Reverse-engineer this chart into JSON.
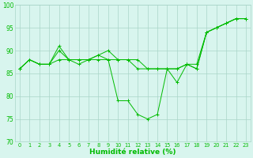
{
  "title": "",
  "xlabel": "Humidité relative (%)",
  "ylabel": "",
  "xlim": [
    -0.5,
    23.5
  ],
  "ylim": [
    70,
    100
  ],
  "yticks": [
    70,
    75,
    80,
    85,
    90,
    95,
    100
  ],
  "xticks": [
    0,
    1,
    2,
    3,
    4,
    5,
    6,
    7,
    8,
    9,
    10,
    11,
    12,
    13,
    14,
    15,
    16,
    17,
    18,
    19,
    20,
    21,
    22,
    23
  ],
  "background_color": "#d8f5ee",
  "grid_color": "#aad4c8",
  "line_color": "#00bb00",
  "series": [
    [
      86,
      88,
      87,
      87,
      91,
      88,
      88,
      88,
      89,
      90,
      88,
      88,
      88,
      86,
      86,
      86,
      86,
      87,
      87,
      94,
      95,
      96,
      97,
      97
    ],
    [
      86,
      88,
      87,
      87,
      88,
      88,
      87,
      88,
      88,
      88,
      88,
      88,
      86,
      86,
      86,
      86,
      86,
      87,
      86,
      94,
      95,
      96,
      97,
      97
    ],
    [
      86,
      88,
      87,
      87,
      90,
      88,
      88,
      88,
      89,
      88,
      79,
      79,
      76,
      75,
      76,
      86,
      83,
      87,
      86,
      94,
      95,
      96,
      97,
      97
    ]
  ]
}
